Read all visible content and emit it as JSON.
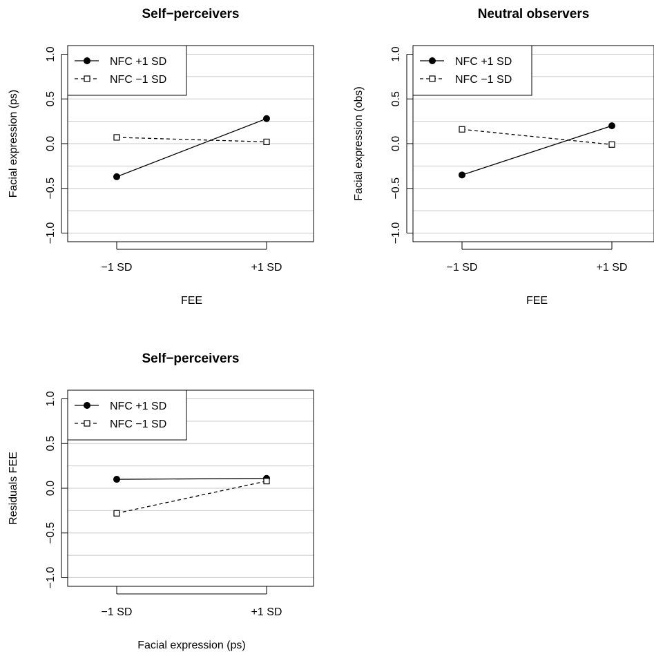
{
  "chart_data": [
    {
      "type": "line",
      "title": "Self−perceivers",
      "xlabel": "FEE",
      "ylabel": "Facial expression (ps)",
      "categories": [
        "−1 SD",
        "+1 SD"
      ],
      "ylim": [
        -1.0,
        1.0
      ],
      "yticks": [
        "−1.0",
        "−0.5",
        "0.0",
        "0.5",
        "1.0"
      ],
      "grid": true,
      "legend_position": "top-left",
      "series": [
        {
          "name": "NFC +1 SD",
          "values": [
            -0.37,
            0.28
          ],
          "line": "solid",
          "marker": "filled-circle"
        },
        {
          "name": "NFC −1 SD",
          "values": [
            0.07,
            0.02
          ],
          "line": "dashed",
          "marker": "open-square"
        }
      ]
    },
    {
      "type": "line",
      "title": "Neutral observers",
      "xlabel": "FEE",
      "ylabel": "Facial expression (obs)",
      "categories": [
        "−1 SD",
        "+1 SD"
      ],
      "ylim": [
        -1.0,
        1.0
      ],
      "yticks": [
        "−1.0",
        "−0.5",
        "0.0",
        "0.5",
        "1.0"
      ],
      "grid": true,
      "legend_position": "top-left",
      "series": [
        {
          "name": "NFC +1 SD",
          "values": [
            -0.35,
            0.2
          ],
          "line": "solid",
          "marker": "filled-circle"
        },
        {
          "name": "NFC −1 SD",
          "values": [
            0.16,
            -0.01
          ],
          "line": "dashed",
          "marker": "open-square"
        }
      ]
    },
    {
      "type": "line",
      "title": "Self−perceivers",
      "xlabel": "Facial expression (ps)",
      "ylabel": "Residuals FEE",
      "categories": [
        "−1 SD",
        "+1 SD"
      ],
      "ylim": [
        -1.0,
        1.0
      ],
      "yticks": [
        "−1.0",
        "−0.5",
        "0.0",
        "0.5",
        "1.0"
      ],
      "grid": true,
      "legend_position": "top-left",
      "series": [
        {
          "name": "NFC +1 SD",
          "values": [
            0.1,
            0.11
          ],
          "line": "solid",
          "marker": "filled-circle"
        },
        {
          "name": "NFC −1 SD",
          "values": [
            -0.28,
            0.08
          ],
          "line": "dashed",
          "marker": "open-square"
        }
      ]
    }
  ]
}
